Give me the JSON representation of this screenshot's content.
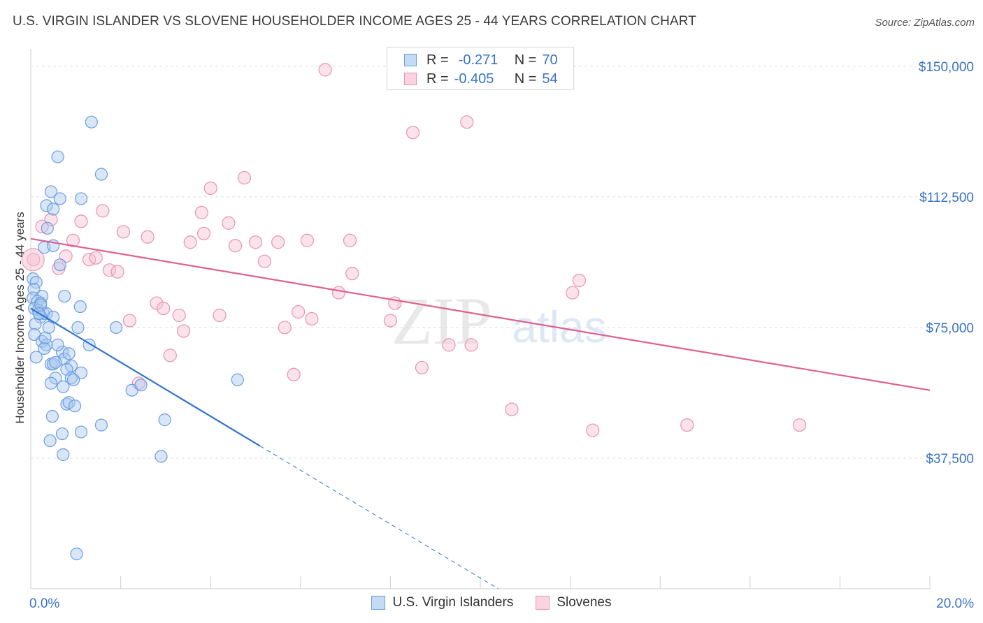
{
  "title": "U.S. VIRGIN ISLANDER VS SLOVENE HOUSEHOLDER INCOME AGES 25 - 44 YEARS CORRELATION CHART",
  "source": "Source: ZipAtlas.com",
  "watermark": {
    "zip": "ZIP",
    "atlas": "atlas"
  },
  "legend": {
    "rows": [
      {
        "r_label": "R =",
        "r_value": "-0.271",
        "n_label": "N =",
        "n_value": "70"
      },
      {
        "r_label": "R =",
        "r_value": "-0.405",
        "n_label": "N =",
        "n_value": "54"
      }
    ]
  },
  "colors": {
    "blue_fill": "#a9c8f0",
    "blue_stroke": "#6a9ee0",
    "blue_line": "#2f74d0",
    "pink_fill": "#f7c0d2",
    "pink_stroke": "#e892b0",
    "pink_line": "#e0608e",
    "tick_label": "#3b73c4",
    "grid": "#dedede"
  },
  "chart_data": {
    "type": "scatter",
    "title": "U.S. VIRGIN ISLANDER VS SLOVENE HOUSEHOLDER INCOME AGES 25 - 44 YEARS CORRELATION CHART",
    "xlabel": "",
    "ylabel": "Householder Income Ages 25 - 44 years",
    "xlim": [
      0,
      20
    ],
    "ylim": [
      0,
      157000
    ],
    "x_tick_labels": [
      "0.0%",
      "20.0%"
    ],
    "y_ticks": [
      37500,
      75000,
      112500,
      150000
    ],
    "y_tick_labels": [
      "$37,500",
      "$75,000",
      "$112,500",
      "$150,000"
    ],
    "legend_position": "top-center",
    "series": [
      {
        "name": "U.S. Virgin Islanders",
        "r": -0.271,
        "n": 70,
        "trend": {
          "x0": 0.0,
          "y0": 80500,
          "x1": 5.1,
          "y1": 41000,
          "dash_x1": 10.4,
          "dash_y1": 0
        },
        "points": [
          [
            1.35,
            134000
          ],
          [
            0.6,
            124000
          ],
          [
            1.57,
            119000
          ],
          [
            0.45,
            114000
          ],
          [
            0.65,
            112000
          ],
          [
            1.12,
            112000
          ],
          [
            0.35,
            110000
          ],
          [
            0.5,
            109000
          ],
          [
            0.37,
            103500
          ],
          [
            0.3,
            98000
          ],
          [
            0.5,
            98500
          ],
          [
            0.65,
            93000
          ],
          [
            0.05,
            89000
          ],
          [
            0.12,
            88000
          ],
          [
            0.07,
            86000
          ],
          [
            0.25,
            84000
          ],
          [
            0.75,
            84000
          ],
          [
            0.05,
            83500
          ],
          [
            0.15,
            82500
          ],
          [
            0.22,
            82000
          ],
          [
            0.08,
            80500
          ],
          [
            0.17,
            80000
          ],
          [
            0.28,
            79000
          ],
          [
            0.35,
            79000
          ],
          [
            0.22,
            78000
          ],
          [
            0.5,
            78000
          ],
          [
            0.1,
            76000
          ],
          [
            0.4,
            75000
          ],
          [
            1.1,
            81000
          ],
          [
            1.05,
            75000
          ],
          [
            1.9,
            75000
          ],
          [
            0.08,
            73000
          ],
          [
            0.25,
            71000
          ],
          [
            0.35,
            70000
          ],
          [
            0.3,
            69000
          ],
          [
            1.3,
            70000
          ],
          [
            0.7,
            68000
          ],
          [
            0.12,
            66500
          ],
          [
            0.45,
            64500
          ],
          [
            0.75,
            66000
          ],
          [
            0.9,
            64000
          ],
          [
            0.5,
            64500
          ],
          [
            0.8,
            63000
          ],
          [
            1.12,
            62000
          ],
          [
            0.55,
            60500
          ],
          [
            0.9,
            60500
          ],
          [
            0.95,
            60000
          ],
          [
            4.6,
            60000
          ],
          [
            0.45,
            59000
          ],
          [
            0.72,
            58000
          ],
          [
            2.25,
            57000
          ],
          [
            2.45,
            58500
          ],
          [
            0.8,
            53000
          ],
          [
            0.85,
            53500
          ],
          [
            0.98,
            52500
          ],
          [
            0.48,
            49500
          ],
          [
            2.98,
            48500
          ],
          [
            1.57,
            47000
          ],
          [
            0.7,
            44500
          ],
          [
            1.12,
            45000
          ],
          [
            0.43,
            42500
          ],
          [
            0.72,
            38500
          ],
          [
            2.9,
            38000
          ],
          [
            1.02,
            10000
          ],
          [
            0.22,
            81500
          ],
          [
            0.18,
            79000
          ],
          [
            0.32,
            72000
          ],
          [
            0.6,
            70000
          ],
          [
            0.55,
            65000
          ],
          [
            0.85,
            67500
          ]
        ]
      },
      {
        "name": "Slovenes",
        "r": -0.405,
        "n": 54,
        "trend": {
          "x0": 0.0,
          "y0": 100500,
          "x1": 20.0,
          "y1": 57000
        },
        "points": [
          [
            6.55,
            149000
          ],
          [
            9.7,
            134000
          ],
          [
            8.5,
            131000
          ],
          [
            4.75,
            118000
          ],
          [
            4.0,
            115000
          ],
          [
            1.6,
            108500
          ],
          [
            3.8,
            108000
          ],
          [
            0.45,
            106000
          ],
          [
            1.12,
            105500
          ],
          [
            4.4,
            105000
          ],
          [
            0.25,
            104000
          ],
          [
            2.06,
            102500
          ],
          [
            3.85,
            102000
          ],
          [
            2.6,
            101000
          ],
          [
            0.94,
            100000
          ],
          [
            6.15,
            100000
          ],
          [
            7.1,
            100000
          ],
          [
            3.55,
            99500
          ],
          [
            5.0,
            99500
          ],
          [
            5.5,
            99500
          ],
          [
            4.55,
            98500
          ],
          [
            0.78,
            95500
          ],
          [
            1.3,
            94500
          ],
          [
            1.45,
            95000
          ],
          [
            0.06,
            94500
          ],
          [
            5.2,
            94000
          ],
          [
            0.62,
            92000
          ],
          [
            1.75,
            91500
          ],
          [
            1.93,
            91000
          ],
          [
            7.15,
            90500
          ],
          [
            12.2,
            88500
          ],
          [
            12.05,
            85000
          ],
          [
            6.85,
            85000
          ],
          [
            2.8,
            82000
          ],
          [
            8.1,
            82000
          ],
          [
            2.95,
            80500
          ],
          [
            5.95,
            79500
          ],
          [
            4.2,
            78500
          ],
          [
            3.3,
            78500
          ],
          [
            6.25,
            77500
          ],
          [
            2.2,
            77000
          ],
          [
            8.0,
            77000
          ],
          [
            5.65,
            75000
          ],
          [
            3.4,
            74000
          ],
          [
            9.3,
            70000
          ],
          [
            9.8,
            70000
          ],
          [
            3.1,
            67000
          ],
          [
            5.85,
            61500
          ],
          [
            8.7,
            63500
          ],
          [
            2.4,
            59000
          ],
          [
            10.7,
            51500
          ],
          [
            12.5,
            45500
          ],
          [
            14.6,
            47000
          ],
          [
            17.1,
            47000
          ]
        ]
      }
    ]
  },
  "bottom_legend": {
    "items": [
      {
        "label": "U.S. Virgin Islanders"
      },
      {
        "label": "Slovenes"
      }
    ]
  }
}
